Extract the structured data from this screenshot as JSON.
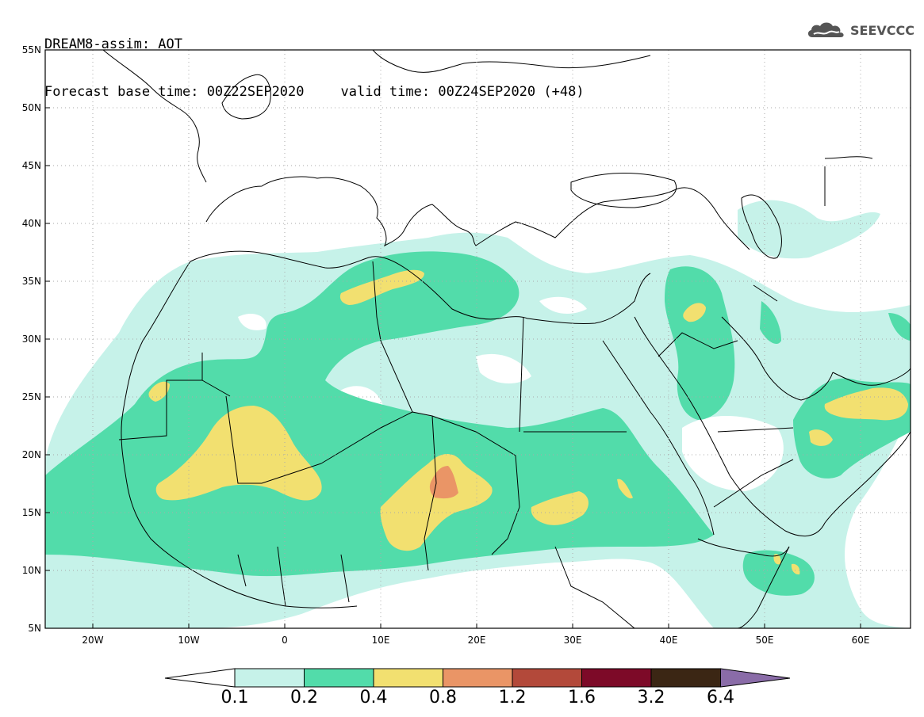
{
  "header": {
    "line1": "DREAM8-assim: AOT",
    "base_time": "Forecast base time: 00Z22SEP2020",
    "valid_time": "valid time: 00Z24SEP2020 (+48)"
  },
  "logo": {
    "text": "SEEVCCC",
    "icon": "cloud-logo-icon"
  },
  "axes": {
    "lat_labels": [
      "55N",
      "50N",
      "45N",
      "40N",
      "35N",
      "30N",
      "25N",
      "20N",
      "15N",
      "10N",
      "5N"
    ],
    "lon_labels": [
      "20W",
      "10W",
      "0",
      "10E",
      "20E",
      "30E",
      "40E",
      "50E",
      "60E"
    ],
    "lat_range": [
      5,
      55
    ],
    "lon_range": [
      -25,
      65
    ],
    "grid": "dotted"
  },
  "colorbar": {
    "labels": [
      "0.1",
      "0.2",
      "0.4",
      "0.8",
      "1.2",
      "1.6",
      "3.2",
      "6.4"
    ],
    "colors": [
      "#c6f2e9",
      "#52dcaa",
      "#f2e070",
      "#ea9566",
      "#b3493a",
      "#7d0a28",
      "#3b2614",
      "#8a6ca8"
    ]
  },
  "colors": {
    "level1": "#c6f2e9",
    "level2": "#52dcaa",
    "level3": "#f2e070",
    "level4": "#ea9566"
  }
}
